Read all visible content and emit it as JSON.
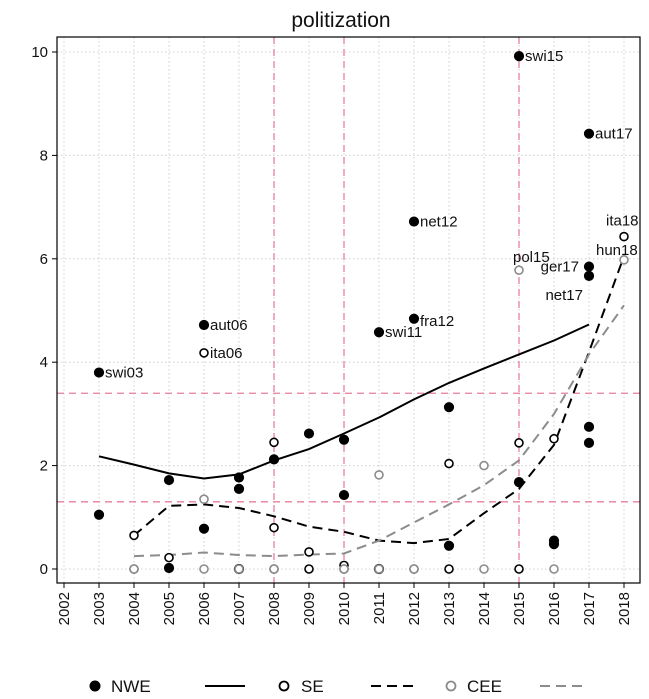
{
  "chart_data": {
    "type": "scatter",
    "title": "politization",
    "xlabel": "",
    "ylabel": "",
    "xlim": [
      2002,
      2018
    ],
    "ylim": [
      0,
      10
    ],
    "x_ticks": [
      "2002",
      "2003",
      "2004",
      "2005",
      "2006",
      "2007",
      "2008",
      "2009",
      "2010",
      "2011",
      "2012",
      "2013",
      "2014",
      "2015",
      "2016",
      "2017",
      "2018"
    ],
    "y_ticks": [
      "0",
      "2",
      "4",
      "6",
      "8",
      "10"
    ],
    "grid": true,
    "colors": {
      "red_ref": "#e57f9b",
      "grid": "#d0d0d0",
      "nwe": "#000000",
      "se": "#000000",
      "cee": "#8c8c8c"
    },
    "reference_lines": {
      "vertical": [
        2008,
        2010,
        2015
      ],
      "horizontal": [
        1.3,
        3.4
      ]
    },
    "series": [
      {
        "name": "NWE",
        "marker": "filled-circle",
        "color": "#000000",
        "points": [
          {
            "x": 2003,
            "y": 3.8,
            "label": "swi03"
          },
          {
            "x": 2003,
            "y": 1.05
          },
          {
            "x": 2005,
            "y": 1.72
          },
          {
            "x": 2005,
            "y": 0.02
          },
          {
            "x": 2006,
            "y": 4.72,
            "label": "aut06"
          },
          {
            "x": 2006,
            "y": 0.78
          },
          {
            "x": 2007,
            "y": 1.77
          },
          {
            "x": 2007,
            "y": 1.55
          },
          {
            "x": 2007,
            "y": 0.0
          },
          {
            "x": 2008,
            "y": 2.12
          },
          {
            "x": 2009,
            "y": 2.62
          },
          {
            "x": 2010,
            "y": 2.5
          },
          {
            "x": 2010,
            "y": 1.43
          },
          {
            "x": 2011,
            "y": 4.58,
            "label": "swi11"
          },
          {
            "x": 2011,
            "y": 0.0
          },
          {
            "x": 2012,
            "y": 6.72,
            "label": "net12"
          },
          {
            "x": 2012,
            "y": 4.84,
            "label": "fra12"
          },
          {
            "x": 2013,
            "y": 3.13
          },
          {
            "x": 2013,
            "y": 0.45
          },
          {
            "x": 2015,
            "y": 9.92,
            "label": "swi15"
          },
          {
            "x": 2015,
            "y": 1.68
          },
          {
            "x": 2016,
            "y": 0.55
          },
          {
            "x": 2016,
            "y": 0.48
          },
          {
            "x": 2017,
            "y": 8.42,
            "label": "aut17"
          },
          {
            "x": 2017,
            "y": 5.85
          },
          {
            "x": 2017,
            "y": 5.67,
            "label": "net17"
          },
          {
            "x": 2017,
            "y": 2.75
          },
          {
            "x": 2017,
            "y": 2.44
          }
        ],
        "fit": [
          [
            2003,
            2.18
          ],
          [
            2004,
            2.02
          ],
          [
            2005,
            1.85
          ],
          [
            2006,
            1.75
          ],
          [
            2007,
            1.83
          ],
          [
            2008,
            2.1
          ],
          [
            2009,
            2.32
          ],
          [
            2010,
            2.62
          ],
          [
            2011,
            2.93
          ],
          [
            2012,
            3.28
          ],
          [
            2013,
            3.6
          ],
          [
            2014,
            3.88
          ],
          [
            2015,
            4.15
          ],
          [
            2016,
            4.42
          ],
          [
            2017,
            4.73
          ]
        ]
      },
      {
        "name": "SE",
        "marker": "hollow-circle",
        "color": "#000000",
        "points": [
          {
            "x": 2004,
            "y": 0.65
          },
          {
            "x": 2004,
            "y": 0.0
          },
          {
            "x": 2005,
            "y": 0.22
          },
          {
            "x": 2006,
            "y": 4.18,
            "label": "ita06"
          },
          {
            "x": 2007,
            "y": 0.0
          },
          {
            "x": 2008,
            "y": 2.45
          },
          {
            "x": 2008,
            "y": 0.8
          },
          {
            "x": 2008,
            "y": 0.0
          },
          {
            "x": 2009,
            "y": 0.33
          },
          {
            "x": 2009,
            "y": 0.0
          },
          {
            "x": 2010,
            "y": 0.07
          },
          {
            "x": 2010,
            "y": 0.0
          },
          {
            "x": 2011,
            "y": 0.0
          },
          {
            "x": 2012,
            "y": 0.0
          },
          {
            "x": 2013,
            "y": 2.04
          },
          {
            "x": 2013,
            "y": 0.0
          },
          {
            "x": 2015,
            "y": 2.44
          },
          {
            "x": 2015,
            "y": 0.0
          },
          {
            "x": 2016,
            "y": 2.52
          },
          {
            "x": 2018,
            "y": 6.43,
            "label": "ita18"
          }
        ],
        "fit": [
          [
            2004,
            0.65
          ],
          [
            2005,
            1.22
          ],
          [
            2006,
            1.25
          ],
          [
            2007,
            1.18
          ],
          [
            2008,
            1.02
          ],
          [
            2009,
            0.82
          ],
          [
            2010,
            0.72
          ],
          [
            2011,
            0.55
          ],
          [
            2012,
            0.5
          ],
          [
            2013,
            0.58
          ],
          [
            2014,
            1.08
          ],
          [
            2015,
            1.55
          ],
          [
            2016,
            2.4
          ],
          [
            2017,
            4.2
          ],
          [
            2018,
            6.05
          ]
        ]
      },
      {
        "name": "CEE",
        "marker": "hollow-circle",
        "color": "#8c8c8c",
        "points": [
          {
            "x": 2004,
            "y": 0.0
          },
          {
            "x": 2006,
            "y": 1.35
          },
          {
            "x": 2006,
            "y": 0.0
          },
          {
            "x": 2007,
            "y": 0.0
          },
          {
            "x": 2008,
            "y": 0.0
          },
          {
            "x": 2010,
            "y": 0.0
          },
          {
            "x": 2011,
            "y": 1.82
          },
          {
            "x": 2011,
            "y": 0.0
          },
          {
            "x": 2012,
            "y": 0.0
          },
          {
            "x": 2014,
            "y": 2.0
          },
          {
            "x": 2014,
            "y": 0.0
          },
          {
            "x": 2015,
            "y": 5.78,
            "label": "pol15"
          },
          {
            "x": 2016,
            "y": 0.0
          },
          {
            "x": 2018,
            "y": 5.98,
            "label": "hun18"
          }
        ],
        "fit": [
          [
            2004,
            0.25
          ],
          [
            2005,
            0.27
          ],
          [
            2006,
            0.32
          ],
          [
            2007,
            0.27
          ],
          [
            2008,
            0.25
          ],
          [
            2009,
            0.28
          ],
          [
            2010,
            0.3
          ],
          [
            2011,
            0.55
          ],
          [
            2012,
            0.9
          ],
          [
            2013,
            1.25
          ],
          [
            2014,
            1.62
          ],
          [
            2015,
            2.1
          ],
          [
            2016,
            3.0
          ],
          [
            2017,
            4.15
          ],
          [
            2018,
            5.1
          ]
        ]
      }
    ],
    "extra_labels": [
      {
        "text": "ger17",
        "x": 2017,
        "y": 5.85
      }
    ],
    "legend": {
      "placement": "bottom",
      "entries": [
        {
          "label": "NWE",
          "marker": "filled-circle",
          "line": "solid"
        },
        {
          "label": "SE",
          "marker": "hollow-circle",
          "line": "dashed"
        },
        {
          "label": "CEE",
          "marker": "hollow-circle-gray",
          "line": "dashed-gray"
        }
      ]
    }
  }
}
